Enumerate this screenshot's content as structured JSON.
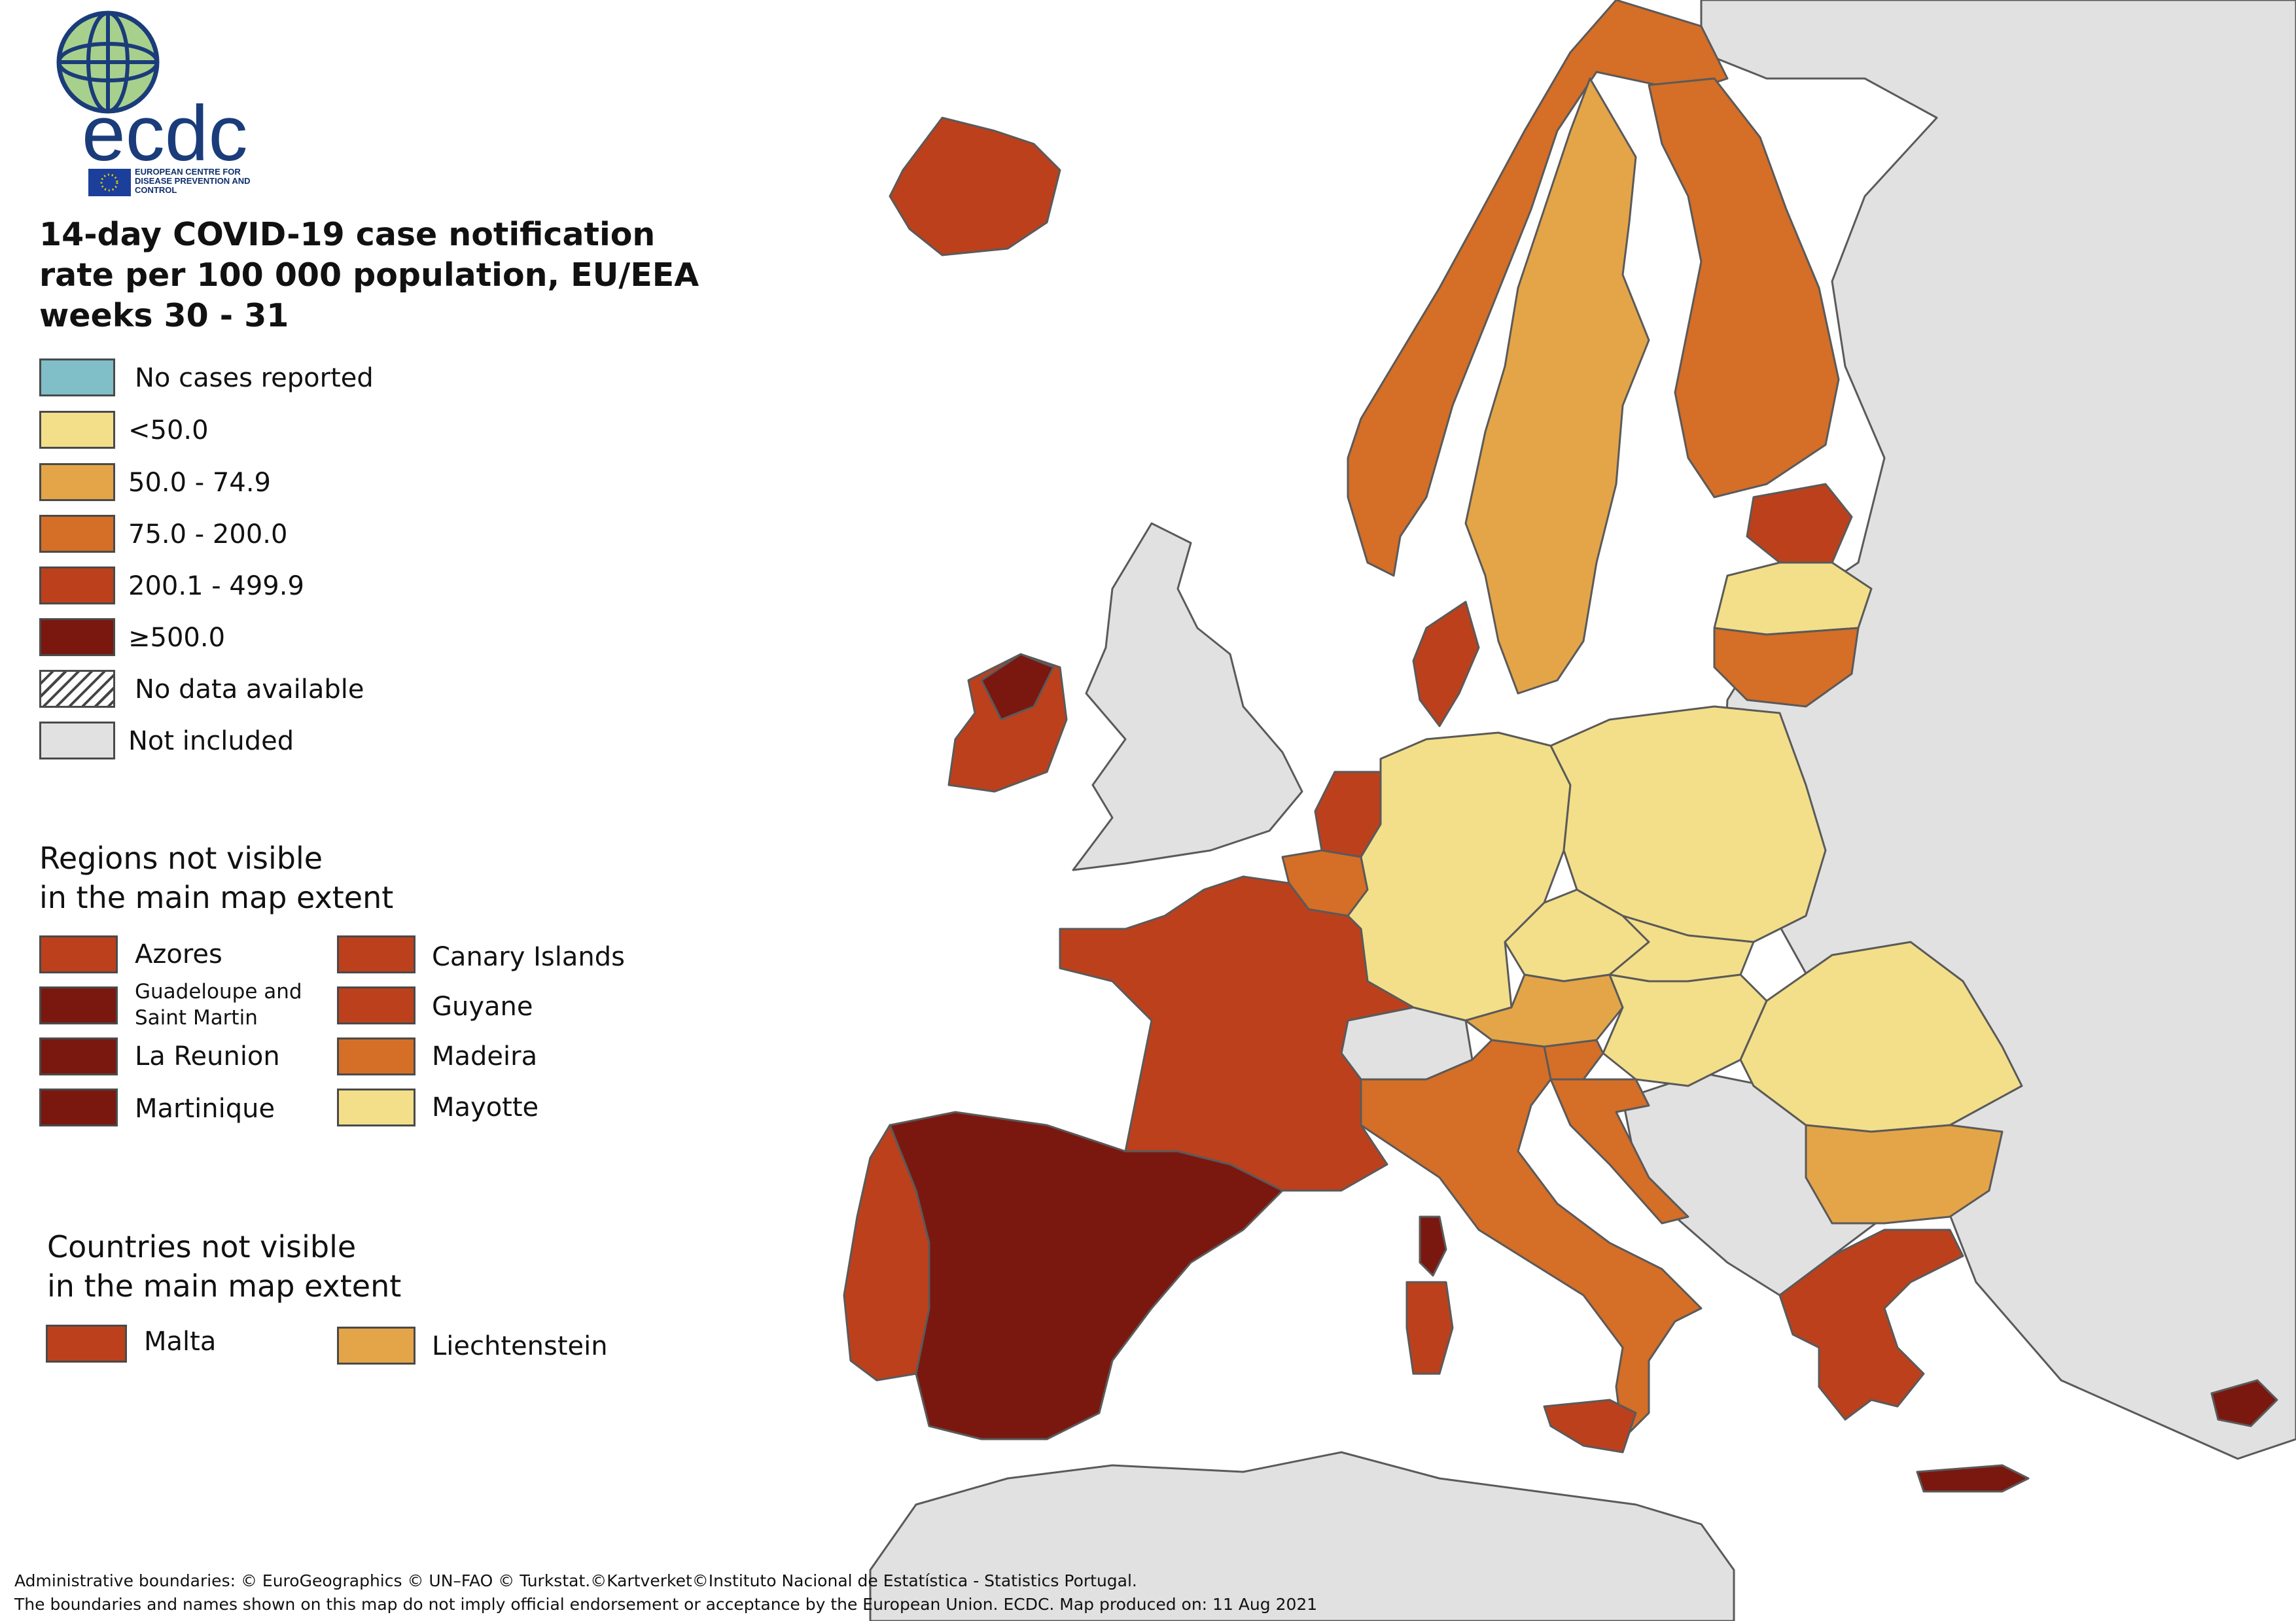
{
  "colors": {
    "no_cases": "#80bec8",
    "lt50": "#f3df89",
    "c50_74": "#e4a548",
    "c75_200": "#d56e27",
    "c200_499": "#bd401c",
    "ge500": "#7a1810",
    "not_included": "#e1e1e1",
    "sea": "#ffffff",
    "border": "#5a5a5a"
  },
  "logo": {
    "text": "ecdc",
    "tagline": "EUROPEAN CENTRE FOR DISEASE PREVENTION AND CONTROL"
  },
  "title": {
    "line1": "14-day COVID-19 case notification",
    "line2": "rate per 100 000 population, EU/EEA",
    "line3": "weeks 30 - 31"
  },
  "legend": [
    {
      "label": "No cases reported",
      "color_key": "no_cases"
    },
    {
      "label": "<50.0",
      "color_key": "lt50"
    },
    {
      "label": "50.0 - 74.9",
      "color_key": "c50_74"
    },
    {
      "label": "75.0 - 200.0",
      "color_key": "c75_200"
    },
    {
      "label": "200.1 - 499.9",
      "color_key": "c200_499"
    },
    {
      "label": "≥500.0",
      "color_key": "ge500"
    },
    {
      "label": "No data available",
      "color_key": "hatch"
    },
    {
      "label": "Not included",
      "color_key": "not_included"
    }
  ],
  "regions_section": {
    "heading_line1": "Regions not visible",
    "heading_line2": "in the main map extent",
    "items": [
      {
        "label": "Azores",
        "color_key": "c200_499"
      },
      {
        "label": "Canary Islands",
        "color_key": "c200_499"
      },
      {
        "label": "Guadeloupe and Saint Martin",
        "color_key": "ge500"
      },
      {
        "label": "Guyane",
        "color_key": "c200_499"
      },
      {
        "label": "La Reunion",
        "color_key": "ge500"
      },
      {
        "label": "Madeira",
        "color_key": "c75_200"
      },
      {
        "label": "Martinique",
        "color_key": "ge500"
      },
      {
        "label": "Mayotte",
        "color_key": "lt50"
      }
    ]
  },
  "countries_section": {
    "heading_line1": "Countries not visible",
    "heading_line2": "in the main map extent",
    "items": [
      {
        "label": "Malta",
        "color_key": "c200_499"
      },
      {
        "label": "Liechtenstein",
        "color_key": "c50_74"
      }
    ]
  },
  "footer": {
    "line1": "Administrative boundaries: © EuroGeographics © UN–FAO © Turkstat.©Kartverket©Instituto Nacional de Estatística - Statistics Portugal.",
    "line2": "The boundaries and names shown on this map do not imply official endorsement or acceptance by the European Union. ECDC. Map produced on: 11 Aug 2021"
  },
  "map_regions": [
    {
      "name": "Iceland",
      "color_key": "c200_499"
    },
    {
      "name": "Norway",
      "color_key": "c75_200"
    },
    {
      "name": "Sweden",
      "color_key": "c50_74"
    },
    {
      "name": "Finland",
      "color_key": "c75_200"
    },
    {
      "name": "Estonia",
      "color_key": "c200_499"
    },
    {
      "name": "Latvia",
      "color_key": "lt50"
    },
    {
      "name": "Lithuania",
      "color_key": "c75_200"
    },
    {
      "name": "Denmark",
      "color_key": "c200_499"
    },
    {
      "name": "Ireland",
      "color_key": "c200_499"
    },
    {
      "name": "Netherlands",
      "color_key": "c200_499"
    },
    {
      "name": "Belgium",
      "color_key": "c75_200"
    },
    {
      "name": "Luxembourg",
      "color_key": "c75_200"
    },
    {
      "name": "Germany",
      "color_key": "lt50"
    },
    {
      "name": "Poland",
      "color_key": "lt50"
    },
    {
      "name": "Czechia",
      "color_key": "lt50"
    },
    {
      "name": "Slovakia",
      "color_key": "lt50"
    },
    {
      "name": "Austria",
      "color_key": "c50_74"
    },
    {
      "name": "Hungary",
      "color_key": "lt50"
    },
    {
      "name": "Slovenia",
      "color_key": "c75_200"
    },
    {
      "name": "Croatia",
      "color_key": "c75_200"
    },
    {
      "name": "Romania",
      "color_key": "lt50"
    },
    {
      "name": "Bulgaria",
      "color_key": "c50_74"
    },
    {
      "name": "France",
      "color_key": "c200_499"
    },
    {
      "name": "Spain",
      "color_key": "ge500"
    },
    {
      "name": "Portugal",
      "color_key": "c200_499"
    },
    {
      "name": "Italy",
      "color_key": "c75_200"
    },
    {
      "name": "Greece",
      "color_key": "c200_499"
    },
    {
      "name": "Cyprus",
      "color_key": "ge500"
    },
    {
      "name": "Corsica",
      "color_key": "ge500"
    },
    {
      "name": "Sardinia",
      "color_key": "c200_499"
    },
    {
      "name": "Sicily",
      "color_key": "c200_499"
    },
    {
      "name": "Crete",
      "color_key": "ge500"
    },
    {
      "name": "United Kingdom",
      "color_key": "not_included"
    },
    {
      "name": "Switzerland",
      "color_key": "not_included"
    }
  ]
}
